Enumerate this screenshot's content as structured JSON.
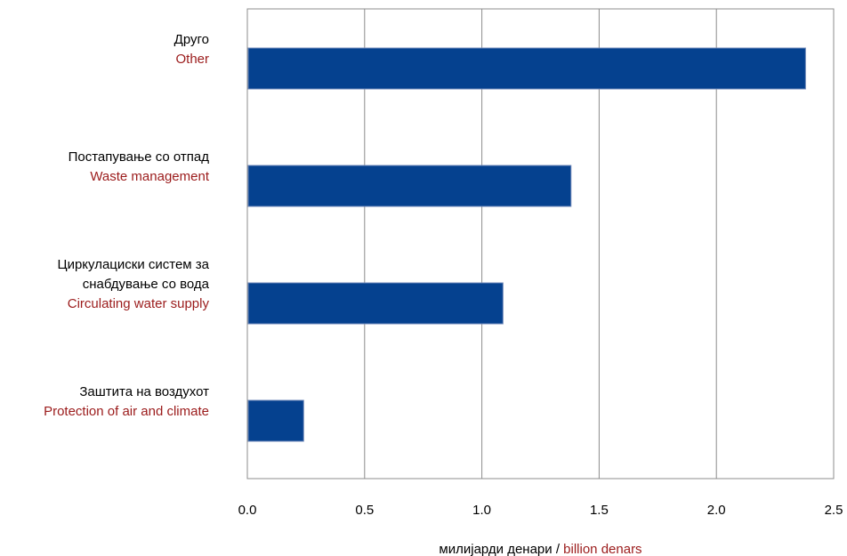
{
  "chart_data": {
    "type": "bar",
    "orientation": "horizontal",
    "categories": [
      {
        "mk": [
          "Друго"
        ],
        "en": [
          "Other"
        ]
      },
      {
        "mk": [
          "Постапување со отпад"
        ],
        "en": [
          "Waste management"
        ]
      },
      {
        "mk": [
          "Циркулациски систем за",
          "снабдување со вода"
        ],
        "en": [
          "Circulating water supply"
        ]
      },
      {
        "mk": [
          "Заштита на воздухот"
        ],
        "en": [
          "Protection of air and climate"
        ]
      }
    ],
    "values": [
      2.38,
      1.38,
      1.09,
      0.24
    ],
    "xlim": [
      0,
      2.5
    ],
    "xticks": [
      "0.0",
      "0.5",
      "1.0",
      "1.5",
      "2.0",
      "2.5"
    ],
    "xlabel": {
      "mk": "милијарди денари / ",
      "en": "billion denars"
    },
    "bar_color": "#05418f",
    "grid": true,
    "legend": "none"
  }
}
